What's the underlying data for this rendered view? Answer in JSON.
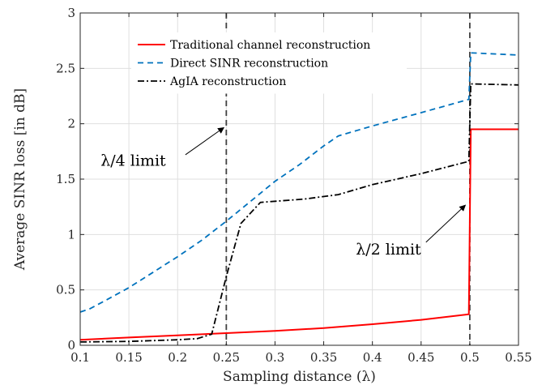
{
  "chart_data": {
    "type": "line",
    "xlabel": "Sampling distance (λ)",
    "ylabel": "Average SINR loss [in dB]",
    "xlim": [
      0.1,
      0.55
    ],
    "ylim": [
      0,
      3
    ],
    "xticks": [
      0.1,
      0.15,
      0.2,
      0.25,
      0.3,
      0.35,
      0.4,
      0.45,
      0.5,
      0.55
    ],
    "xtick_labels": [
      "0.1",
      "0.15",
      "0.2",
      "0.25",
      "0.3",
      "0.35",
      "0.4",
      "0.45",
      "0.5",
      "0.55"
    ],
    "yticks": [
      0,
      0.5,
      1,
      1.5,
      2,
      2.5,
      3
    ],
    "ytick_labels": [
      "0",
      "0.5",
      "1",
      "1.5",
      "2",
      "2.5",
      "3"
    ],
    "grid": true,
    "legend_position": "top-center",
    "vlines": [
      0.25,
      0.5
    ],
    "series": [
      {
        "name": "Traditional channel reconstruction",
        "color": "#ff0000",
        "style": "solid",
        "x": [
          0.1,
          0.15,
          0.2,
          0.25,
          0.3,
          0.35,
          0.4,
          0.45,
          0.499,
          0.501,
          0.55
        ],
        "y": [
          0.05,
          0.07,
          0.09,
          0.11,
          0.13,
          0.155,
          0.19,
          0.23,
          0.28,
          1.95,
          1.95
        ]
      },
      {
        "name": "Direct SINR reconstruction",
        "color": "#0072bd",
        "style": "dashed",
        "x": [
          0.1,
          0.11,
          0.125,
          0.15,
          0.175,
          0.2,
          0.225,
          0.25,
          0.275,
          0.3,
          0.325,
          0.35,
          0.365,
          0.4,
          0.45,
          0.499,
          0.501,
          0.55
        ],
        "y": [
          0.3,
          0.33,
          0.4,
          0.52,
          0.66,
          0.8,
          0.95,
          1.12,
          1.3,
          1.48,
          1.63,
          1.8,
          1.89,
          1.98,
          2.1,
          2.22,
          2.64,
          2.62
        ]
      },
      {
        "name": "AgIA reconstruction",
        "color": "#000000",
        "style": "dashdot",
        "x": [
          0.1,
          0.15,
          0.2,
          0.22,
          0.235,
          0.25,
          0.265,
          0.285,
          0.33,
          0.365,
          0.4,
          0.45,
          0.499,
          0.501,
          0.55
        ],
        "y": [
          0.03,
          0.035,
          0.05,
          0.06,
          0.1,
          0.62,
          1.1,
          1.29,
          1.32,
          1.36,
          1.45,
          1.55,
          1.66,
          2.36,
          2.35
        ]
      }
    ],
    "annotations": [
      {
        "text": "λ/4 limit",
        "x": 0.121,
        "y": 1.62,
        "arrow_from": [
          0.208,
          1.72
        ],
        "arrow_to": [
          0.25,
          1.98
        ]
      },
      {
        "text": "λ/2 limit",
        "x": 0.383,
        "y": 0.82,
        "arrow_from": [
          0.455,
          0.93
        ],
        "arrow_to": [
          0.498,
          1.28
        ]
      }
    ]
  }
}
